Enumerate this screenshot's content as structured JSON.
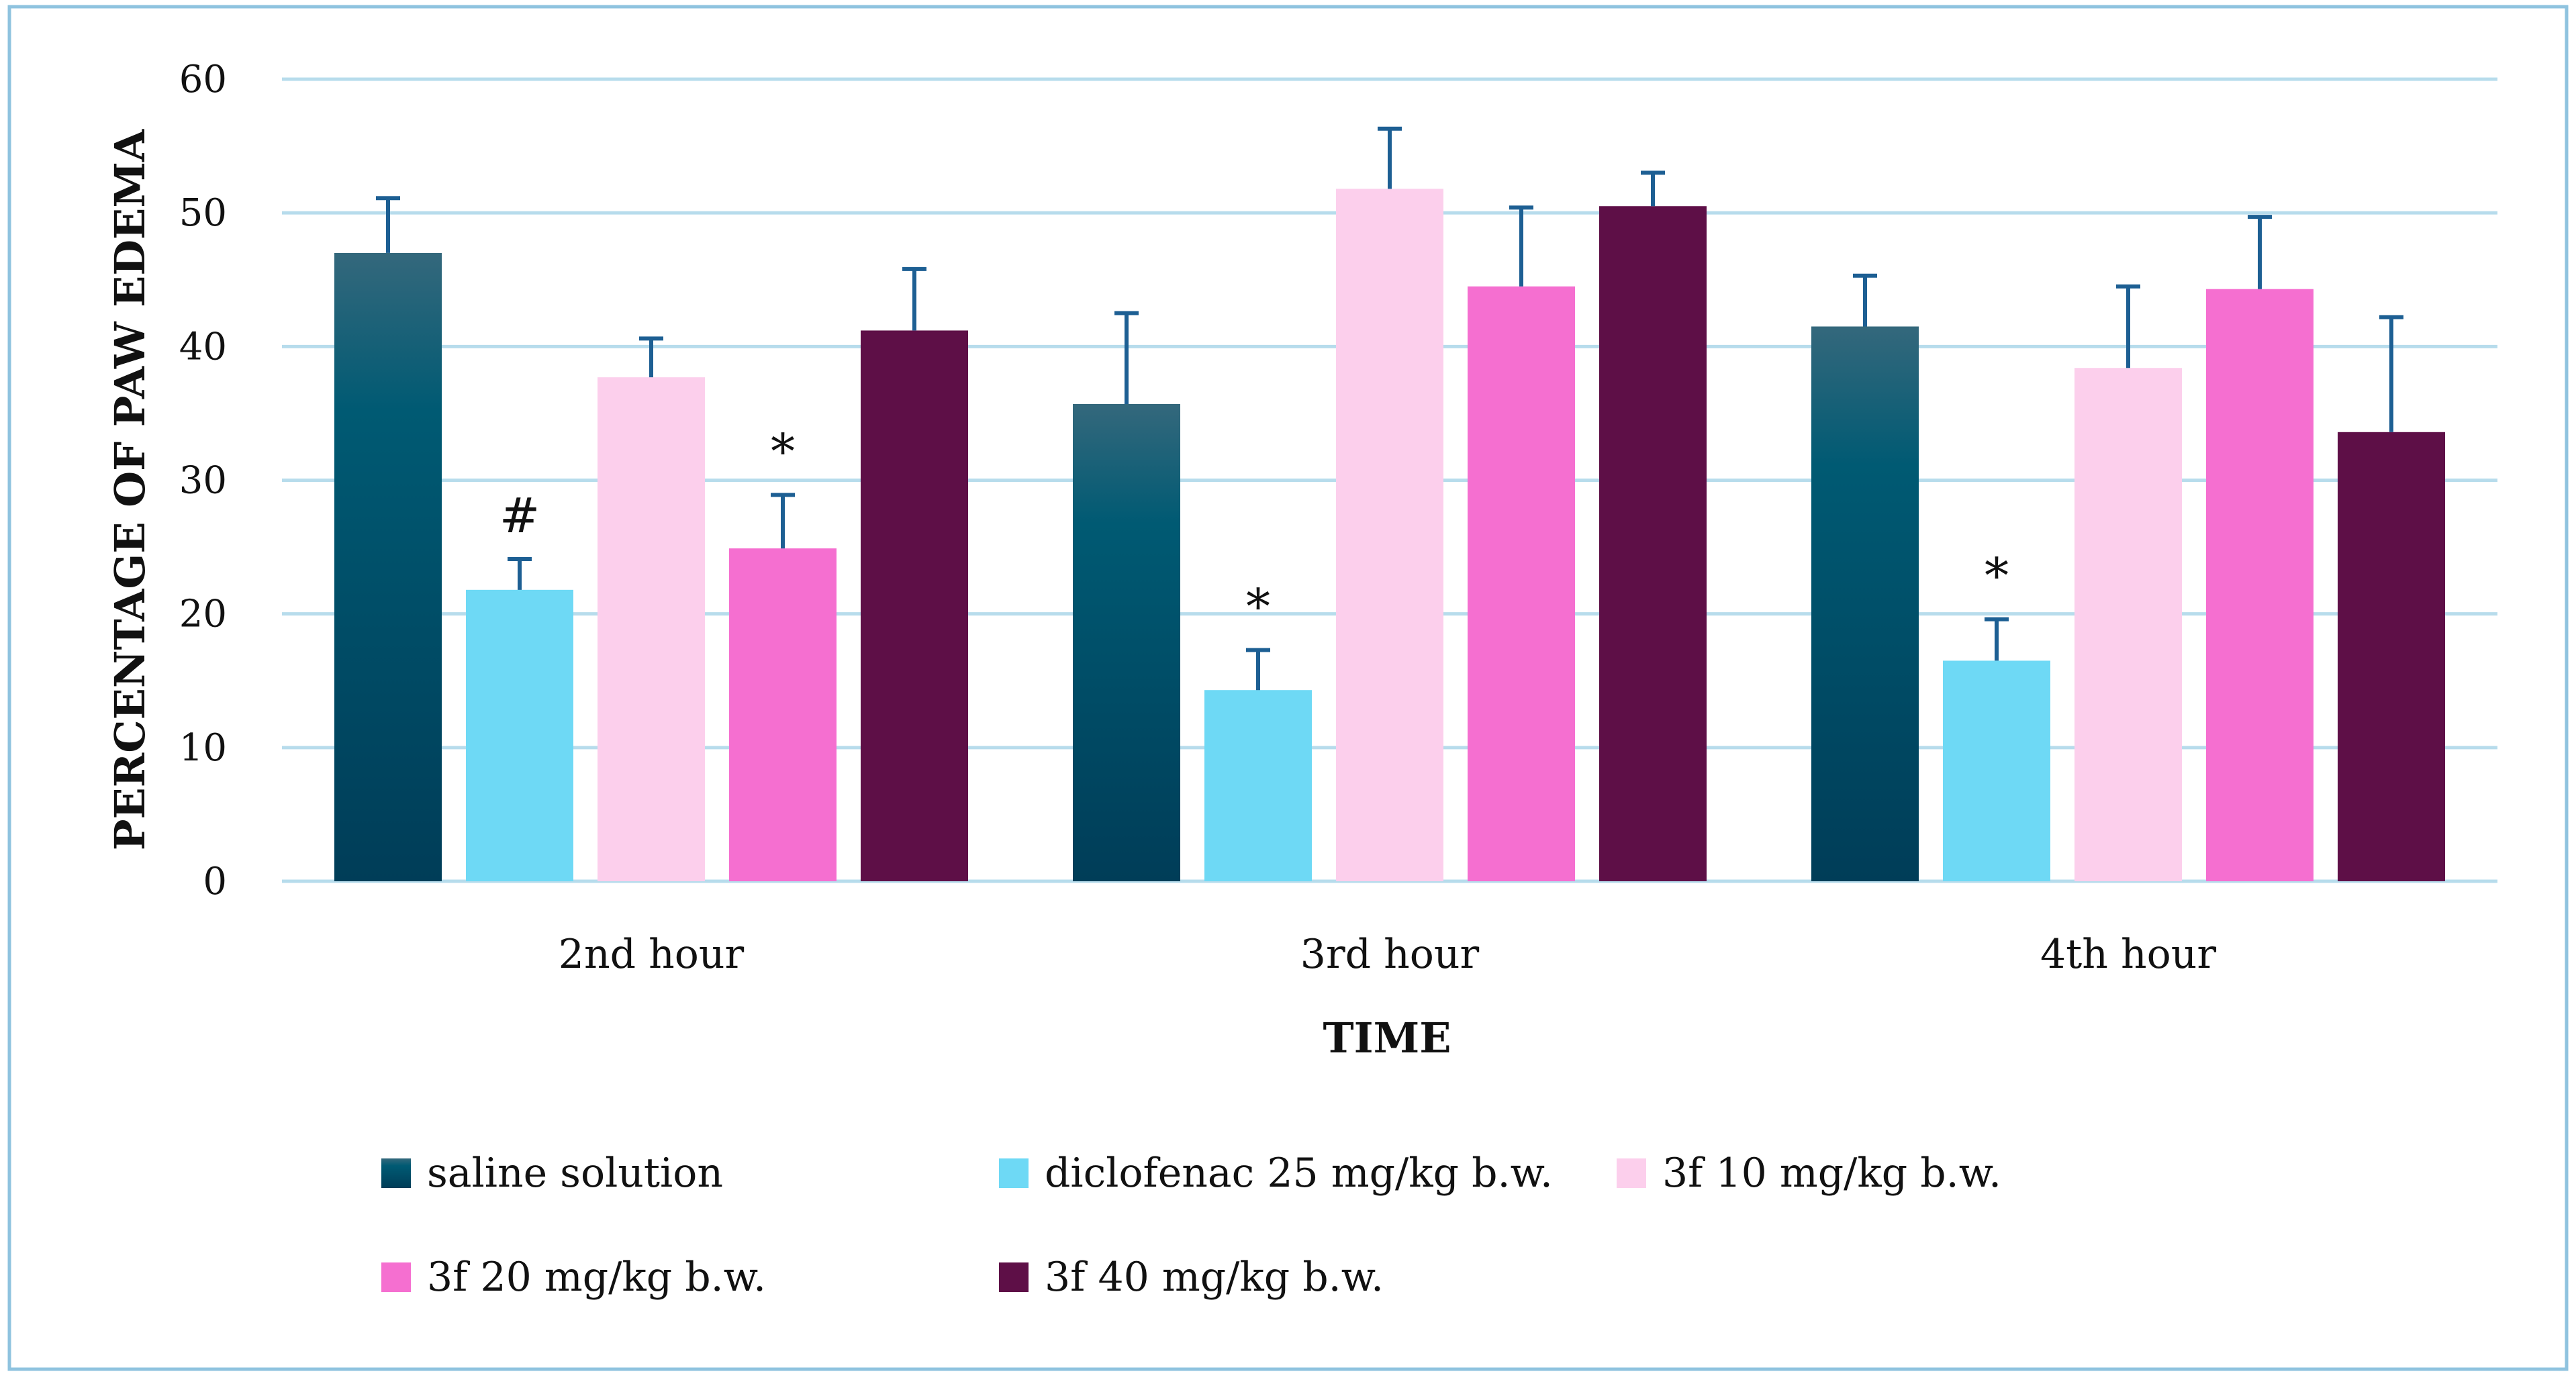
{
  "chart_data": {
    "type": "bar",
    "title": "",
    "xlabel": "TIME",
    "ylabel": "PERCENTAGE OF PAW EDEMA",
    "ylim": [
      0,
      60
    ],
    "yticks": [
      0,
      10,
      20,
      30,
      40,
      50,
      60
    ],
    "grid": true,
    "legend_position": "bottom",
    "categories": [
      "2nd hour",
      "3rd hour",
      "4th hour"
    ],
    "series": [
      {
        "name": "saline solution",
        "color": "#0f4a63",
        "values": [
          47.0,
          35.7,
          41.5
        ],
        "errors": [
          4.1,
          6.8,
          3.8
        ],
        "annotations": [
          "",
          "",
          ""
        ]
      },
      {
        "name": "diclofenac 25 mg/kg b.w.",
        "color": "#6ed9f5",
        "values": [
          21.8,
          14.3,
          16.5
        ],
        "errors": [
          2.3,
          3.0,
          3.1
        ],
        "annotations": [
          "#",
          "*",
          "*"
        ]
      },
      {
        "name": "3f 10 mg/kg b.w.",
        "color": "#fccfec",
        "values": [
          37.7,
          51.8,
          38.4
        ],
        "errors": [
          2.9,
          4.5,
          6.1
        ],
        "annotations": [
          "",
          "",
          ""
        ]
      },
      {
        "name": "3f 20 mg/kg b.w.",
        "color": "#f56fd0",
        "values": [
          24.9,
          44.5,
          44.3
        ],
        "errors": [
          4.0,
          5.9,
          5.4
        ],
        "annotations": [
          "*",
          "",
          ""
        ]
      },
      {
        "name": "3f 40 mg/kg b.w.",
        "color": "#5e0f47",
        "values": [
          41.2,
          50.5,
          33.6
        ],
        "errors": [
          4.6,
          2.5,
          8.6
        ],
        "annotations": [
          "",
          "",
          ""
        ]
      }
    ]
  }
}
